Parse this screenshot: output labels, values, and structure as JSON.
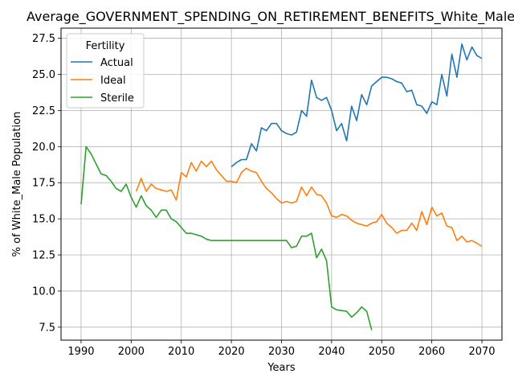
{
  "chart_data": {
    "type": "line",
    "title": "Average_GOVERNMENT_SPENDING_ON_RETIREMENT_BENEFITS_White_Male_Po",
    "xlabel": "Years",
    "ylabel": "% of White_Male Population",
    "xlim": [
      1986,
      2074
    ],
    "ylim": [
      6.6,
      28.2
    ],
    "xticks": [
      1990,
      2000,
      2010,
      2020,
      2030,
      2040,
      2050,
      2060,
      2070
    ],
    "yticks": [
      7.5,
      10.0,
      12.5,
      15.0,
      17.5,
      20.0,
      22.5,
      25.0,
      27.5
    ],
    "grid": true,
    "legend": {
      "title": "Fertility",
      "position": "top-left"
    },
    "series": [
      {
        "name": "Actual",
        "color": "#1f77b4",
        "x": [
          2020,
          2021,
          2022,
          2023,
          2024,
          2025,
          2026,
          2027,
          2028,
          2029,
          2030,
          2031,
          2032,
          2033,
          2034,
          2035,
          2036,
          2037,
          2038,
          2039,
          2040,
          2041,
          2042,
          2043,
          2044,
          2045,
          2046,
          2047,
          2048,
          2049,
          2050,
          2051,
          2052,
          2053,
          2054,
          2055,
          2056,
          2057,
          2058,
          2059,
          2060,
          2061,
          2062,
          2063,
          2064,
          2065,
          2066,
          2067,
          2068,
          2069,
          2070
        ],
        "y": [
          18.6,
          18.9,
          19.1,
          19.1,
          20.2,
          19.7,
          21.3,
          21.1,
          21.6,
          21.6,
          21.1,
          20.9,
          20.8,
          21.0,
          22.5,
          22.1,
          24.6,
          23.4,
          23.2,
          23.4,
          22.5,
          21.1,
          21.6,
          20.4,
          22.8,
          21.8,
          23.6,
          22.9,
          24.2,
          24.5,
          24.8,
          24.8,
          24.7,
          24.5,
          24.4,
          23.8,
          23.9,
          22.9,
          22.8,
          22.3,
          23.1,
          22.9,
          25.0,
          23.5,
          26.4,
          24.8,
          27.1,
          26.0,
          26.9,
          26.3,
          26.1
        ]
      },
      {
        "name": "Ideal",
        "color": "#ff7f0e",
        "x": [
          2001,
          2002,
          2003,
          2004,
          2005,
          2006,
          2007,
          2008,
          2009,
          2010,
          2011,
          2012,
          2013,
          2014,
          2015,
          2016,
          2017,
          2018,
          2019,
          2020,
          2021,
          2022,
          2023,
          2024,
          2025,
          2026,
          2027,
          2028,
          2029,
          2030,
          2031,
          2032,
          2033,
          2034,
          2035,
          2036,
          2037,
          2038,
          2039,
          2040,
          2041,
          2042,
          2043,
          2044,
          2045,
          2046,
          2047,
          2048,
          2049,
          2050,
          2051,
          2052,
          2053,
          2054,
          2055,
          2056,
          2057,
          2058,
          2059,
          2060,
          2061,
          2062,
          2063,
          2064,
          2065,
          2066,
          2067,
          2068,
          2069,
          2070
        ],
        "y": [
          16.9,
          17.8,
          16.9,
          17.4,
          17.1,
          17.0,
          16.9,
          17.0,
          16.3,
          18.2,
          17.9,
          18.9,
          18.3,
          19.0,
          18.6,
          19.0,
          18.4,
          18.0,
          17.6,
          17.6,
          17.5,
          18.2,
          18.5,
          18.3,
          18.2,
          17.6,
          17.1,
          16.8,
          16.4,
          16.1,
          16.2,
          16.1,
          16.2,
          17.2,
          16.6,
          17.2,
          16.7,
          16.6,
          16.1,
          15.2,
          15.1,
          15.3,
          15.2,
          14.9,
          14.7,
          14.6,
          14.5,
          14.7,
          14.8,
          15.3,
          14.7,
          14.4,
          14.0,
          14.2,
          14.2,
          14.7,
          14.2,
          15.5,
          14.6,
          15.8,
          15.2,
          15.4,
          14.5,
          14.4,
          13.5,
          13.8,
          13.4,
          13.5,
          13.3,
          13.1
        ]
      },
      {
        "name": "Sterile",
        "color": "#2ca02c",
        "x": [
          1990,
          1991,
          1992,
          1993,
          1994,
          1995,
          1996,
          1997,
          1998,
          1999,
          2000,
          2001,
          2002,
          2003,
          2004,
          2005,
          2006,
          2007,
          2008,
          2009,
          2010,
          2011,
          2012,
          2013,
          2014,
          2015,
          2016,
          2017,
          2018,
          2019,
          2020,
          2021,
          2022,
          2023,
          2024,
          2025,
          2026,
          2027,
          2028,
          2029,
          2030,
          2031,
          2032,
          2033,
          2034,
          2035,
          2036,
          2037,
          2038,
          2039,
          2040,
          2041,
          2042,
          2043,
          2044,
          2045,
          2046,
          2047,
          2048
        ],
        "y": [
          16.0,
          20.0,
          19.5,
          18.8,
          18.1,
          18.0,
          17.6,
          17.1,
          16.9,
          17.4,
          16.5,
          15.8,
          16.6,
          15.9,
          15.6,
          15.1,
          15.6,
          15.6,
          15.0,
          14.8,
          14.4,
          14.0,
          14.0,
          13.9,
          13.8,
          13.6,
          13.5,
          13.5,
          13.5,
          13.5,
          13.5,
          13.5,
          13.5,
          13.5,
          13.5,
          13.5,
          13.5,
          13.5,
          13.5,
          13.5,
          13.5,
          13.5,
          13.0,
          13.1,
          13.8,
          13.8,
          14.0,
          12.3,
          12.9,
          12.1,
          8.9,
          8.7,
          8.65,
          8.6,
          8.2,
          8.5,
          8.9,
          8.6,
          7.3
        ]
      }
    ]
  }
}
